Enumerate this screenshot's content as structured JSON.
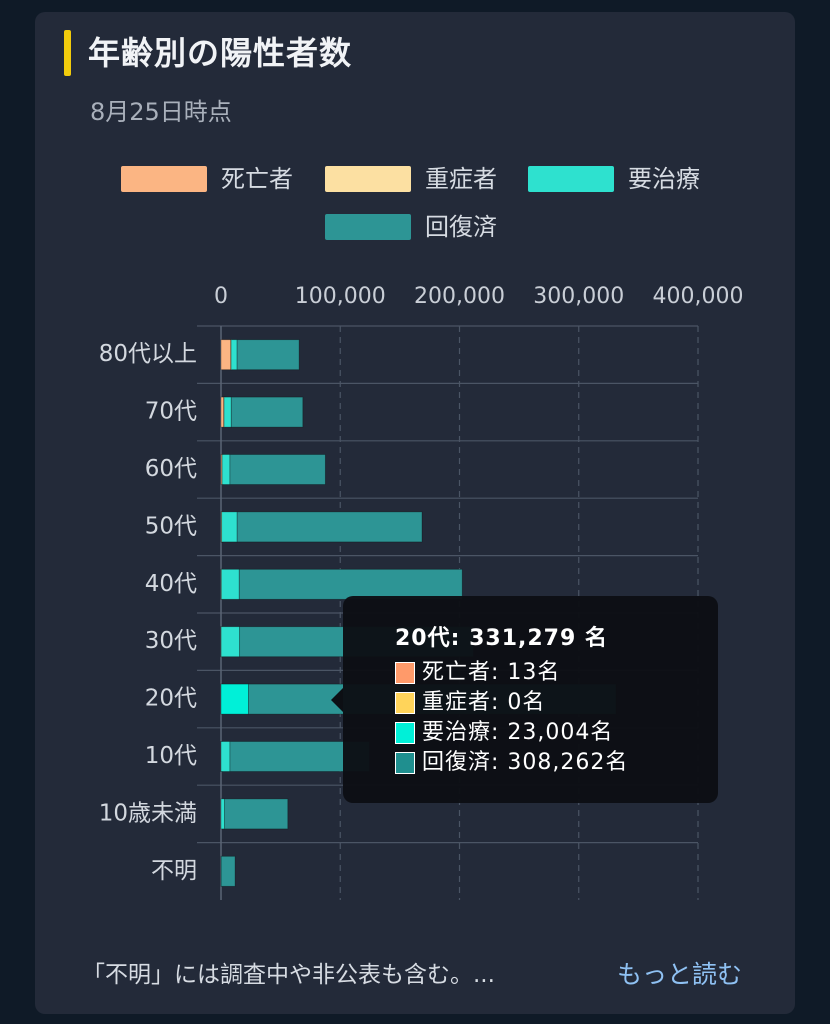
{
  "title": "年齢別の陽性者数",
  "subtitle": "8月25日時点",
  "legend": [
    {
      "label": "死亡者",
      "color": "#fbb583"
    },
    {
      "label": "重症者",
      "color": "#fce0a2"
    },
    {
      "label": "要治療",
      "color": "#2ee1cf"
    },
    {
      "label": "回復済",
      "color": "#2d9595"
    }
  ],
  "chart_data": {
    "type": "bar",
    "orientation": "horizontal",
    "stacked": true,
    "categories": [
      "80代以上",
      "70代",
      "60代",
      "50代",
      "40代",
      "30代",
      "20代",
      "10代",
      "10歳未満",
      "不明"
    ],
    "series": [
      {
        "name": "死亡者",
        "values": [
          8200,
          2300,
          700,
          300,
          100,
          30,
          13,
          5,
          0,
          0
        ],
        "color": "#fbb583"
      },
      {
        "name": "重症者",
        "values": [
          300,
          300,
          300,
          250,
          200,
          80,
          0,
          10,
          0,
          0
        ],
        "color": "#fce0a2"
      },
      {
        "name": "要治療",
        "values": [
          5000,
          6000,
          6500,
          13000,
          15000,
          15500,
          23004,
          7500,
          3000,
          300
        ],
        "color": "#2ee1cf"
      },
      {
        "name": "回復済",
        "values": [
          52000,
          60000,
          80000,
          155000,
          187000,
          196000,
          308262,
          117000,
          53000,
          11500
        ],
        "color": "#2d9595"
      }
    ],
    "highlight_index": 6,
    "x_ticks": [
      "0",
      "100,000",
      "200,000",
      "300,000",
      "400,000"
    ],
    "xlim": [
      0,
      400000
    ],
    "grid": true,
    "legend_position": "top"
  },
  "tooltip": {
    "title": "20代: 331,279 名",
    "rows": [
      {
        "text": "死亡者: 13名",
        "color": "#ff9a6a"
      },
      {
        "text": "重症者: 0名",
        "color": "#ffd45a"
      },
      {
        "text": "要治療: 23,004名",
        "color": "#00f0d8"
      },
      {
        "text": "回復済: 308,262名",
        "color": "#1f8f8f"
      }
    ]
  },
  "footnote": "「不明」には調査中や非公表も含む。...",
  "more_link": "もっと読む"
}
